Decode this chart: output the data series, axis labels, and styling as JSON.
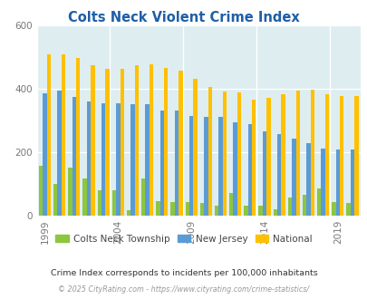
{
  "title": "Colts Neck Violent Crime Index",
  "years": [
    1999,
    2000,
    2001,
    2002,
    2003,
    2004,
    2005,
    2006,
    2007,
    2008,
    2009,
    2010,
    2011,
    2012,
    2013,
    2014,
    2015,
    2016,
    2017,
    2018,
    2019,
    2020
  ],
  "colts_neck": [
    155,
    100,
    150,
    115,
    80,
    80,
    15,
    115,
    45,
    42,
    42,
    38,
    30,
    70,
    30,
    30,
    20,
    55,
    65,
    85,
    43,
    40
  ],
  "new_jersey": [
    385,
    395,
    375,
    360,
    355,
    355,
    350,
    350,
    330,
    330,
    315,
    310,
    310,
    295,
    288,
    265,
    256,
    243,
    228,
    210,
    208,
    208
  ],
  "national": [
    508,
    508,
    498,
    473,
    464,
    464,
    473,
    476,
    466,
    456,
    430,
    405,
    390,
    388,
    365,
    372,
    382,
    395,
    398,
    382,
    378,
    378
  ],
  "colts_neck_color": "#8dc63f",
  "nj_color": "#5b9bd5",
  "national_color": "#ffc000",
  "bg_color": "#deedf0",
  "ylim": [
    0,
    600
  ],
  "yticks": [
    0,
    200,
    400,
    600
  ],
  "xtick_years": [
    1999,
    2004,
    2009,
    2014,
    2019
  ],
  "title_color": "#1f5fa6",
  "subtitle": "Crime Index corresponds to incidents per 100,000 inhabitants",
  "footer": "© 2025 CityRating.com - https://www.cityrating.com/crime-statistics/",
  "legend_labels": [
    "Colts Neck Township",
    "New Jersey",
    "National"
  ],
  "bar_width": 0.27
}
